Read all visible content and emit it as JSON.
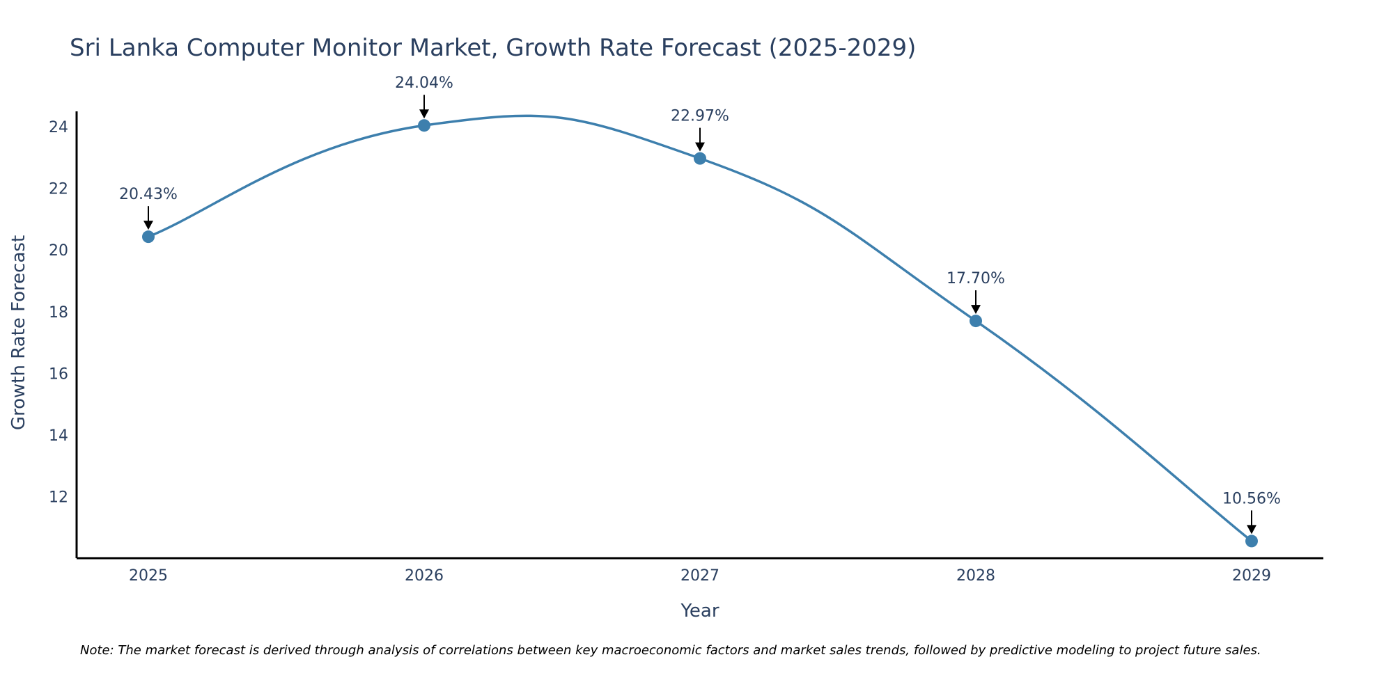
{
  "chart_data": {
    "type": "line",
    "title": "Sri Lanka Computer Monitor Market, Growth Rate Forecast (2025-2029)",
    "xlabel": "Year",
    "ylabel": "Growth Rate Forecast",
    "categories": [
      "2025",
      "2026",
      "2027",
      "2028",
      "2029"
    ],
    "values": [
      20.43,
      24.04,
      22.97,
      17.7,
      10.56
    ],
    "data_labels": [
      "20.43%",
      "24.04%",
      "22.97%",
      "17.70%",
      "10.56%"
    ],
    "yticks": [
      12,
      14,
      16,
      18,
      20,
      22,
      24
    ],
    "ylim": [
      10,
      24.5
    ],
    "grid": false,
    "line_shape": "spline",
    "colors": {
      "line": "#3d7fad",
      "marker": "#3d7fad",
      "annotation_arrow": "#000000",
      "axis": "#000000",
      "text": "#2a3f5f"
    },
    "note": "Note: The market forecast is derived through analysis of correlations between key macroeconomic factors and market sales trends, followed by predictive modeling to project future sales."
  }
}
